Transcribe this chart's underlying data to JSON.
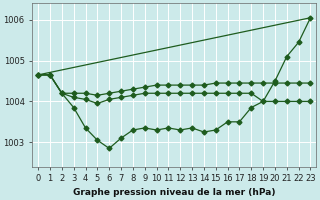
{
  "title": "Graphe pression niveau de la mer (hPa)",
  "bg_color": "#cceaea",
  "grid_color": "#ffffff",
  "line_color": "#1e5c1e",
  "xlim": [
    -0.5,
    23.5
  ],
  "ylim": [
    1002.4,
    1006.4
  ],
  "yticks": [
    1003,
    1004,
    1005,
    1006
  ],
  "xtick_labels": [
    "0",
    "1",
    "2",
    "3",
    "4",
    "5",
    "6",
    "7",
    "8",
    "9",
    "10",
    "11",
    "12",
    "13",
    "14",
    "15",
    "16",
    "17",
    "18",
    "19",
    "20",
    "21",
    "22",
    "23"
  ],
  "line1": [
    1004.65,
    1004.65,
    1004.2,
    1003.85,
    1003.35,
    1003.05,
    1002.85,
    1003.1,
    1003.3,
    1003.35,
    1003.3,
    1003.35,
    1003.3,
    1003.35,
    1003.25,
    1003.3,
    1003.5,
    1003.5,
    1003.85,
    1004.0,
    1004.5,
    1005.1,
    1005.45,
    1006.05
  ],
  "line2_x": [
    0,
    23
  ],
  "line2_y": [
    1004.65,
    1006.05
  ],
  "line3": [
    1004.65,
    1004.65,
    1004.2,
    1004.2,
    1004.2,
    1004.15,
    1004.2,
    1004.25,
    1004.3,
    1004.35,
    1004.4,
    1004.4,
    1004.4,
    1004.4,
    1004.4,
    1004.45,
    1004.45,
    1004.45,
    1004.45,
    1004.45,
    1004.45,
    1004.45,
    1004.45,
    1004.45
  ],
  "line4": [
    1004.65,
    1004.65,
    1004.2,
    1004.1,
    1004.05,
    1003.95,
    1004.05,
    1004.1,
    1004.15,
    1004.2,
    1004.2,
    1004.2,
    1004.2,
    1004.2,
    1004.2,
    1004.2,
    1004.2,
    1004.2,
    1004.2,
    1004.0,
    1004.0,
    1004.0,
    1004.0,
    1004.0
  ],
  "marker_size": 2.5,
  "linewidth": 0.9
}
